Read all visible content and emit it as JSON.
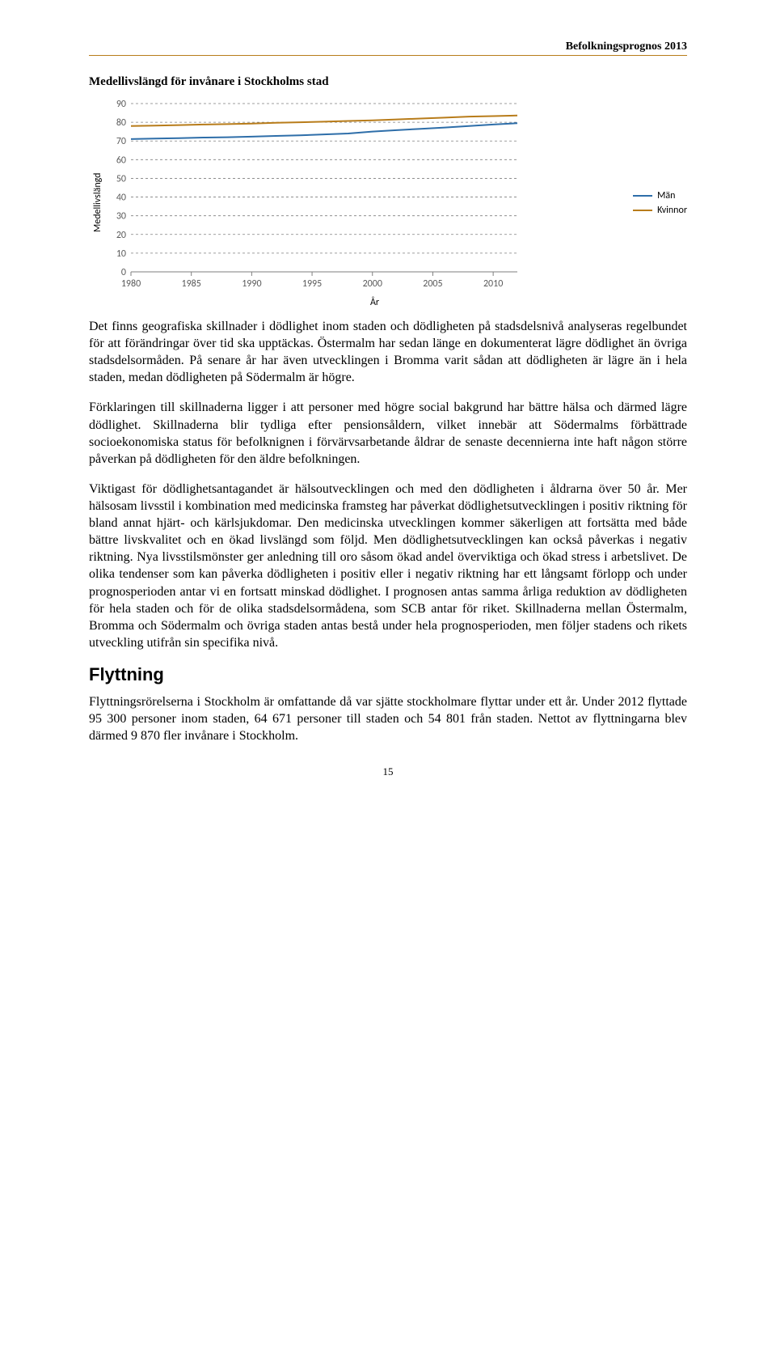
{
  "header": {
    "title": "Befolkningsprognos 2013"
  },
  "chart": {
    "type": "line",
    "title": "Medellivslängd för invånare i Stockholms stad",
    "y_axis_label": "Medellivslängd",
    "x_axis_label": "År",
    "ylim": [
      0,
      90
    ],
    "ytick_step": 10,
    "yticks": [
      0,
      10,
      20,
      30,
      40,
      50,
      60,
      70,
      80,
      90
    ],
    "xlim": [
      1980,
      2012
    ],
    "xticks": [
      1980,
      1985,
      1990,
      1995,
      2000,
      2005,
      2010
    ],
    "grid_color": "#7f7f7f",
    "grid_dash": "3,3",
    "background_color": "#ffffff",
    "label_fontsize": 12,
    "legend_fontsize": 12,
    "line_width": 2,
    "series": [
      {
        "name": "Män",
        "color": "#2e6ea9",
        "x": [
          1980,
          1982,
          1984,
          1986,
          1988,
          1990,
          1992,
          1994,
          1996,
          1998,
          2000,
          2002,
          2004,
          2006,
          2008,
          2010,
          2012
        ],
        "y": [
          71,
          71.3,
          71.5,
          71.8,
          72,
          72.3,
          72.7,
          73,
          73.5,
          74,
          75,
          75.8,
          76.5,
          77.2,
          78,
          78.8,
          79.5
        ]
      },
      {
        "name": "Kvinnor",
        "color": "#b87c1a",
        "x": [
          1980,
          1982,
          1984,
          1986,
          1988,
          1990,
          1992,
          1994,
          1996,
          1998,
          2000,
          2002,
          2004,
          2006,
          2008,
          2010,
          2012
        ],
        "y": [
          78,
          78.2,
          78.5,
          78.8,
          79,
          79.3,
          79.7,
          80,
          80.3,
          80.7,
          81,
          81.5,
          82,
          82.5,
          83,
          83.3,
          83.6
        ]
      }
    ]
  },
  "paragraphs": {
    "p1": "Det finns geografiska skillnader i dödlighet inom staden och dödligheten på stadsdelsnivå analyseras regelbundet för att förändringar över tid ska upptäckas. Östermalm har sedan länge en dokumenterat lägre dödlighet än övriga stadsdelsormåden. På senare år har även utvecklingen i Bromma varit sådan att dödligheten är lägre än i hela staden, medan dödligheten på Södermalm är högre.",
    "p2": "Förklaringen till skillnaderna ligger i att personer med högre social bakgrund har bättre hälsa och därmed lägre dödlighet. Skillnaderna blir tydliga efter pensionsåldern, vilket innebär att Södermalms förbättrade socioekonomiska status för befolknignen i förvärvsarbetande åldrar de senaste decennierna inte haft någon större påverkan på dödligheten för den äldre befolkningen.",
    "p3": "Viktigast för dödlighetsantagandet är hälsoutvecklingen och med den dödligheten i åldrarna över 50 år. Mer hälsosam livsstil i kombination med medicinska framsteg har påverkat dödlighetsutvecklingen i positiv riktning för bland annat hjärt- och kärlsjukdomar. Den medicinska utvecklingen kommer säkerligen att fortsätta med både bättre livskvalitet och en ökad livslängd som följd. Men dödlighetsutvecklingen kan också påverkas i negativ riktning. Nya livsstilsmönster ger anledning till oro såsom ökad andel överviktiga och ökad stress i arbetslivet. De olika tendenser som kan påverka dödligheten i positiv eller i negativ riktning har ett långsamt förlopp och under prognosperioden antar vi en fortsatt minskad dödlighet. I prognosen antas samma årliga reduktion av dödligheten för hela staden och för de olika stadsdelsormådena, som SCB antar för riket. Skillnaderna mellan Östermalm, Bromma och Södermalm och övriga staden antas bestå under hela prognosperioden, men följer stadens och rikets utveckling utifrån sin specifika nivå."
  },
  "section": {
    "heading": "Flyttning"
  },
  "paragraphs2": {
    "p4": "Flyttningsrörelserna i Stockholm är omfattande då var sjätte stockholmare flyttar under ett år. Under 2012 flyttade 95 300 personer inom staden, 64 671 personer till staden och 54 801 från staden. Nettot av flyttningarna blev därmed 9 870 fler invånare i Stockholm."
  },
  "footer": {
    "page": "15"
  }
}
